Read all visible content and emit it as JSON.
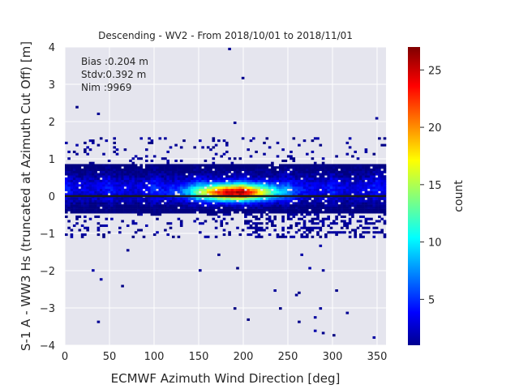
{
  "chart_data": {
    "type": "heatmap",
    "title": "Descending - WV2 - From 2018/10/01 to 2018/11/01",
    "xlabel": "ECMWF Azimuth Wind Direction [deg]",
    "ylabel": "S-1 A - WW3 Hs (truncated at Azimuth Cut Off) [m]",
    "xlim": [
      0,
      360
    ],
    "ylim": [
      -4,
      4
    ],
    "xticks": [
      0,
      50,
      100,
      150,
      200,
      250,
      300,
      350
    ],
    "yticks": [
      -4,
      -3,
      -2,
      -1,
      0,
      1,
      2,
      3,
      4
    ],
    "grid": true,
    "annotations": [
      "Bias :0.204 m",
      "Stdv:0.392 m",
      "Nim :9969"
    ],
    "colorbar": {
      "label": "count",
      "range": [
        1,
        27
      ],
      "ticks": [
        5,
        10,
        15,
        20,
        25
      ],
      "colormap": "jet"
    },
    "zero_line": 0,
    "density_summary": {
      "core_band_y": [
        -0.4,
        0.8
      ],
      "peak_x": 190,
      "peak_y": 0.1,
      "peak_count": 27
    },
    "colors": {
      "background": "#e5e5ee",
      "grid": "#ffffff",
      "zero_line": "#1a1a1a"
    }
  }
}
